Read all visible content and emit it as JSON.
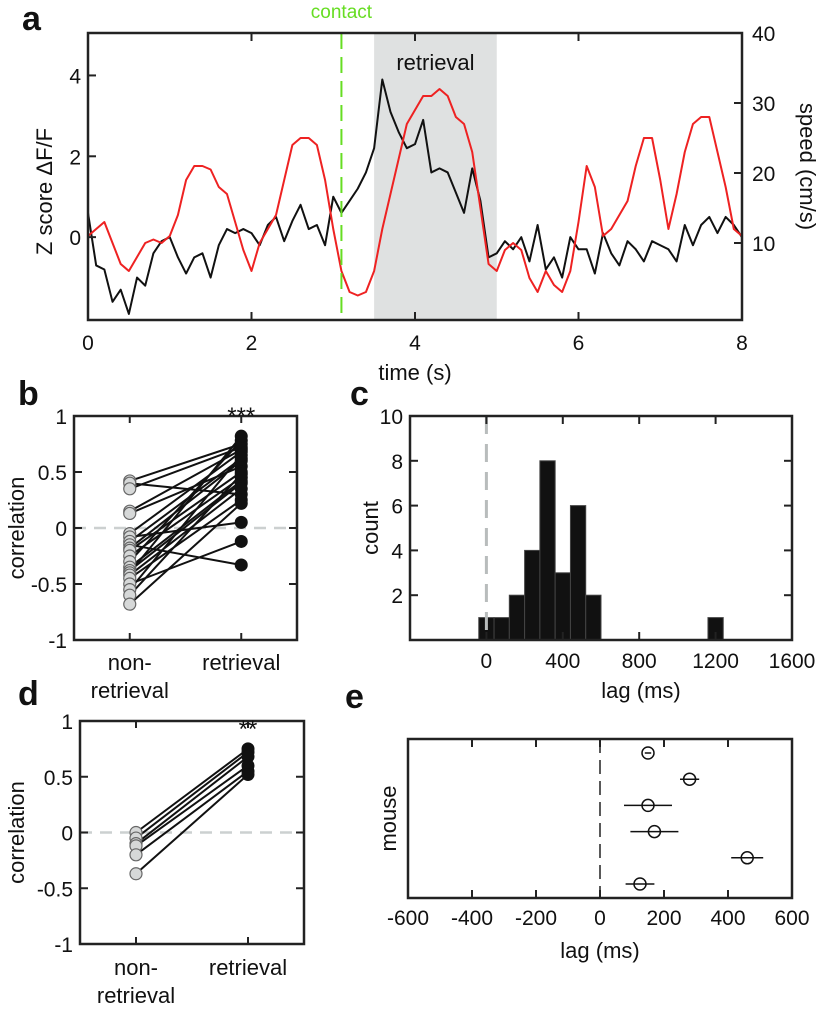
{
  "chart_data": [
    {
      "panel": "a",
      "type": "line",
      "xlabel": "time (s)",
      "ylabel": "Z score ΔF/F",
      "ylabel_right": "speed (cm/s)",
      "xlim": [
        0,
        8
      ],
      "ylim": [
        -2.05,
        5.05
      ],
      "ylim_right": [
        -1,
        40
      ],
      "xticks": [
        0,
        2,
        4,
        6,
        8
      ],
      "yticks": [
        0,
        2,
        4
      ],
      "yticks_right": [
        10,
        20,
        30,
        40
      ],
      "annotations": {
        "contact_label": "contact",
        "contact_time": 3.1,
        "retrieval_label": "retrieval",
        "retrieval_window": [
          3.5,
          5.0
        ]
      },
      "colors": {
        "zscore": "#111111",
        "speed": "#ee2222",
        "contact": "#66dd22",
        "shade": "#dfe1e1"
      },
      "t": [
        0,
        0.1,
        0.2,
        0.3,
        0.4,
        0.5,
        0.6,
        0.7,
        0.8,
        0.9,
        1.0,
        1.1,
        1.2,
        1.3,
        1.4,
        1.5,
        1.6,
        1.7,
        1.8,
        1.9,
        2.0,
        2.1,
        2.2,
        2.3,
        2.4,
        2.5,
        2.6,
        2.7,
        2.8,
        2.9,
        3.0,
        3.1,
        3.2,
        3.3,
        3.4,
        3.5,
        3.6,
        3.7,
        3.8,
        3.9,
        4.0,
        4.1,
        4.2,
        4.3,
        4.4,
        4.5,
        4.6,
        4.7,
        4.8,
        4.9,
        5.0,
        5.1,
        5.2,
        5.3,
        5.4,
        5.5,
        5.6,
        5.7,
        5.8,
        5.9,
        6.0,
        6.1,
        6.2,
        6.3,
        6.4,
        6.5,
        6.6,
        6.7,
        6.8,
        6.9,
        7.0,
        7.1,
        7.2,
        7.3,
        7.4,
        7.5,
        7.6,
        7.7,
        7.8,
        7.9,
        8.0
      ],
      "series": [
        {
          "name": "Z score ΔF/F",
          "axis": "left",
          "values": [
            0.6,
            -0.7,
            -0.8,
            -1.6,
            -1.3,
            -1.9,
            -1.0,
            -1.2,
            -0.4,
            -0.1,
            0.0,
            -0.5,
            -0.9,
            -0.5,
            -0.4,
            -1.0,
            -0.2,
            0.2,
            0.1,
            0.2,
            0.1,
            -0.2,
            0.3,
            0.5,
            -0.1,
            0.4,
            0.8,
            0.2,
            0.3,
            -0.2,
            1.0,
            0.6,
            0.9,
            1.2,
            1.6,
            2.2,
            3.9,
            3.1,
            2.6,
            2.2,
            2.3,
            2.9,
            1.6,
            1.7,
            1.6,
            1.1,
            0.6,
            1.7,
            0.9,
            -0.5,
            -0.4,
            -0.1,
            -0.3,
            0.0,
            -0.6,
            0.3,
            -0.8,
            -0.5,
            -1.0,
            0.0,
            -0.3,
            -0.3,
            -0.9,
            0.1,
            -0.4,
            -0.7,
            -0.1,
            -0.3,
            -0.6,
            -0.1,
            -0.2,
            -0.3,
            -0.6,
            0.3,
            -0.2,
            0.3,
            0.5,
            0.1,
            0.5,
            0.3,
            0.0
          ]
        },
        {
          "name": "speed (cm/s)",
          "axis": "right",
          "values": [
            11,
            12,
            13,
            10,
            7,
            6,
            8,
            10,
            10.5,
            10,
            11,
            14,
            19,
            21,
            21,
            20.5,
            18,
            17,
            13,
            9,
            6,
            10,
            12,
            14,
            19,
            24,
            25,
            25,
            24,
            19,
            12,
            6,
            3,
            2.5,
            3,
            6,
            12,
            17,
            22,
            27,
            29,
            31,
            31,
            32,
            31,
            28,
            27,
            23,
            15,
            7,
            6,
            9,
            10,
            9,
            5,
            3,
            6,
            4,
            3,
            6,
            13,
            21,
            18,
            11,
            12,
            14,
            16,
            21,
            25,
            25,
            19,
            12,
            17,
            23,
            27,
            28,
            28,
            23,
            18,
            12,
            11
          ]
        }
      ]
    },
    {
      "panel": "b",
      "type": "scatter",
      "categories": [
        "non-\nretrieval",
        "retrieval"
      ],
      "category_lines": [
        [
          "non-",
          "retrieval"
        ],
        [
          "retrieval"
        ]
      ],
      "ylabel": "correlation",
      "ylim": [
        -1,
        1
      ],
      "yticks": [
        -1,
        -0.5,
        0,
        0.5,
        1
      ],
      "significance": "***",
      "pairs": [
        [
          0.42,
          0.75
        ],
        [
          0.4,
          0.3
        ],
        [
          0.35,
          0.72
        ],
        [
          0.15,
          0.7
        ],
        [
          0.13,
          0.55
        ],
        [
          -0.05,
          0.68
        ],
        [
          -0.08,
          0.05
        ],
        [
          -0.12,
          0.62
        ],
        [
          -0.15,
          -0.33
        ],
        [
          -0.18,
          0.6
        ],
        [
          -0.2,
          0.5
        ],
        [
          -0.25,
          0.45
        ],
        [
          -0.3,
          0.78
        ],
        [
          -0.35,
          0.42
        ],
        [
          -0.38,
          0.4
        ],
        [
          -0.4,
          0.82
        ],
        [
          -0.42,
          0.35
        ],
        [
          -0.45,
          0.25
        ],
        [
          -0.5,
          -0.12
        ],
        [
          -0.55,
          0.65
        ],
        [
          -0.6,
          0.48
        ],
        [
          -0.68,
          0.22
        ]
      ]
    },
    {
      "panel": "c",
      "type": "bar",
      "xlabel": "lag (ms)",
      "ylabel": "count",
      "xlim": [
        -400,
        1600
      ],
      "ylim": [
        0,
        10
      ],
      "xticks": [
        0,
        400,
        800,
        1200,
        1600
      ],
      "yticks": [
        2,
        4,
        6,
        8,
        10
      ],
      "bin_width": 80,
      "bin_starts": [
        -40,
        40,
        120,
        200,
        280,
        360,
        440,
        520,
        1160
      ],
      "counts": [
        1,
        1,
        2,
        4,
        8,
        3,
        6,
        2,
        1
      ],
      "reference_line": 0
    },
    {
      "panel": "d",
      "type": "scatter",
      "category_lines": [
        [
          "non-",
          "retrieval"
        ],
        [
          "retrieval"
        ]
      ],
      "ylabel": "correlation",
      "ylim": [
        -1,
        1
      ],
      "yticks": [
        -1,
        -0.5,
        0,
        0.5,
        1
      ],
      "significance": "**",
      "pairs": [
        [
          0.0,
          0.75
        ],
        [
          -0.05,
          0.72
        ],
        [
          -0.1,
          0.68
        ],
        [
          -0.12,
          0.6
        ],
        [
          -0.2,
          0.55
        ],
        [
          -0.37,
          0.52
        ]
      ]
    },
    {
      "panel": "e",
      "type": "scatter",
      "xlabel": "lag (ms)",
      "ylabel": "mouse",
      "xlim": [
        -600,
        600
      ],
      "xticks": [
        -600,
        -400,
        -200,
        0,
        200,
        400,
        600
      ],
      "points": [
        {
          "mean": 150,
          "err": 10
        },
        {
          "mean": 280,
          "err": 30
        },
        {
          "mean": 150,
          "err": 75
        },
        {
          "mean": 170,
          "err": 75
        },
        {
          "mean": 460,
          "err": 50
        },
        {
          "mean": 125,
          "err": 45
        }
      ],
      "reference_line": 0
    }
  ],
  "panel_letters": [
    "a",
    "b",
    "c",
    "d",
    "e"
  ]
}
